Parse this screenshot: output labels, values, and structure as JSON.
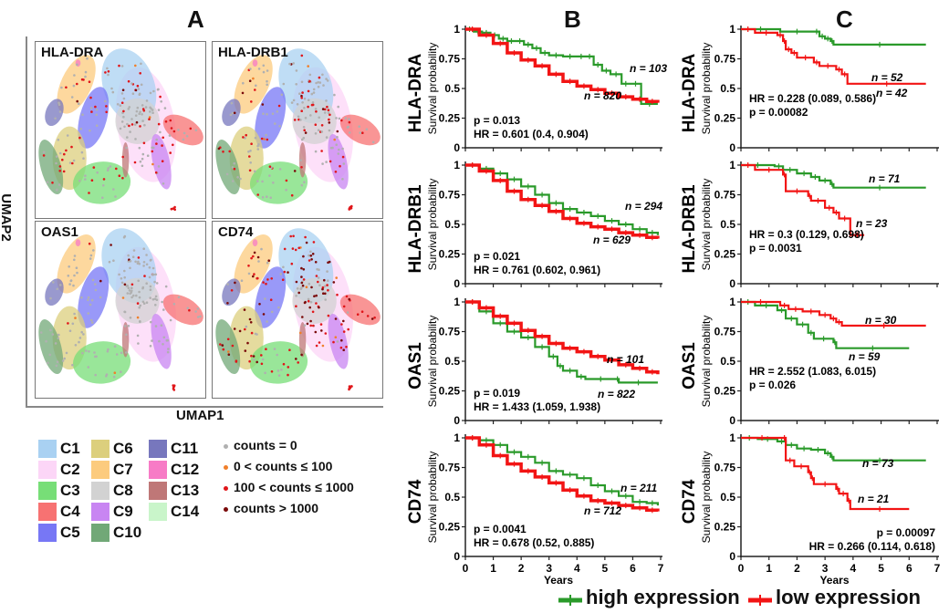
{
  "panels": {
    "A": "A",
    "B": "B",
    "C": "C"
  },
  "umap": {
    "xlabel": "UMAP1",
    "ylabel": "UMAP2",
    "genes": [
      "HLA-DRA",
      "HLA-DRB1",
      "OAS1",
      "CD74"
    ],
    "expression_level": {
      "HLA-DRA": "medium",
      "HLA-DRB1": "medium",
      "OAS1": "low",
      "CD74": "high"
    }
  },
  "clusters": [
    {
      "label": "C1",
      "color": "#a9d1f2"
    },
    {
      "label": "C2",
      "color": "#fcd6f7"
    },
    {
      "label": "C3",
      "color": "#77de77"
    },
    {
      "label": "C4",
      "color": "#f77272"
    },
    {
      "label": "C5",
      "color": "#7777f5"
    },
    {
      "label": "C6",
      "color": "#dccf7d"
    },
    {
      "label": "C7",
      "color": "#fccb7e"
    },
    {
      "label": "C8",
      "color": "#d2d2d2"
    },
    {
      "label": "C9",
      "color": "#c885f2"
    },
    {
      "label": "C10",
      "color": "#71a877"
    },
    {
      "label": "C11",
      "color": "#7777bd"
    },
    {
      "label": "C12",
      "color": "#f77bc6"
    },
    {
      "label": "C13",
      "color": "#bf7777"
    },
    {
      "label": "C14",
      "color": "#c9f5ca"
    }
  ],
  "counts_legend": [
    {
      "label": "counts = 0",
      "color": "#b0b0b0"
    },
    {
      "label": "0 < counts ≤ 100",
      "color": "#f07f2a"
    },
    {
      "label": "100 < counts ≤ 1000",
      "color": "#e0161a"
    },
    {
      "label": "counts > 1000",
      "color": "#7a0a0a"
    }
  ],
  "series_legend": {
    "high": {
      "label": "high expression",
      "color": "#2a9a2a"
    },
    "low": {
      "label": "low expression",
      "color": "#f21414"
    }
  },
  "chart_data": [
    {
      "type": "line",
      "panel": "B",
      "gene": "HLA-DRA",
      "ylabel": "Survival probability",
      "xlabel": "Years",
      "xlim": [
        0,
        7
      ],
      "ylim": [
        0,
        1
      ],
      "yticks": [
        "0",
        "0.25",
        "0.5",
        "0.75",
        "1"
      ],
      "xticks": [
        "0",
        "1",
        "2",
        "3",
        "4",
        "5",
        "6",
        "7"
      ],
      "stats": [
        "p = 0.013",
        "HR = 0.601 (0.4, 0.904)"
      ],
      "stats_pos": "bottom-left",
      "series": [
        {
          "name": "high expression",
          "n": "n = 103",
          "x": [
            0,
            0.3,
            0.6,
            0.9,
            1.2,
            1.5,
            1.8,
            2.1,
            2.4,
            2.7,
            3.0,
            3.5,
            4.0,
            4.3,
            4.6,
            4.9,
            5.2,
            5.6,
            5.9,
            6.3,
            6.9
          ],
          "y": [
            1,
            0.98,
            0.97,
            0.95,
            0.92,
            0.9,
            0.9,
            0.87,
            0.84,
            0.8,
            0.78,
            0.77,
            0.77,
            0.77,
            0.7,
            0.65,
            0.62,
            0.54,
            0.54,
            0.37,
            0.37
          ]
        },
        {
          "name": "low expression",
          "n": "n = 820",
          "x": [
            0,
            0.5,
            1,
            1.5,
            2,
            2.5,
            3,
            3.5,
            4,
            4.5,
            5,
            5.5,
            6,
            6.5,
            6.9
          ],
          "y": [
            1,
            0.95,
            0.88,
            0.8,
            0.74,
            0.69,
            0.62,
            0.56,
            0.52,
            0.49,
            0.46,
            0.43,
            0.41,
            0.39,
            0.38
          ]
        }
      ]
    },
    {
      "type": "line",
      "panel": "B",
      "gene": "HLA-DRB1",
      "ylabel": "Survival probability",
      "xlabel": "Years",
      "xlim": [
        0,
        7
      ],
      "ylim": [
        0,
        1
      ],
      "yticks": [
        "0",
        "0.25",
        "0.5",
        "0.75",
        "1"
      ],
      "xticks": [
        "0",
        "1",
        "2",
        "3",
        "4",
        "5",
        "6",
        "7"
      ],
      "stats": [
        "p = 0.021",
        "HR = 0.761 (0.602, 0.961)"
      ],
      "stats_pos": "bottom-left",
      "series": [
        {
          "name": "high expression",
          "n": "n = 294",
          "x": [
            0,
            0.5,
            1,
            1.5,
            2,
            2.5,
            3,
            3.5,
            4,
            4.5,
            5,
            5.5,
            6,
            6.5,
            6.9
          ],
          "y": [
            1,
            0.97,
            0.93,
            0.88,
            0.82,
            0.75,
            0.68,
            0.63,
            0.6,
            0.57,
            0.53,
            0.5,
            0.46,
            0.43,
            0.41
          ]
        },
        {
          "name": "low expression",
          "n": "n = 629",
          "x": [
            0,
            0.5,
            1,
            1.5,
            2,
            2.5,
            3,
            3.5,
            4,
            4.5,
            5,
            5.5,
            6,
            6.5,
            6.9
          ],
          "y": [
            1,
            0.95,
            0.87,
            0.78,
            0.71,
            0.66,
            0.61,
            0.55,
            0.51,
            0.48,
            0.46,
            0.43,
            0.41,
            0.39,
            0.38
          ]
        }
      ]
    },
    {
      "type": "line",
      "panel": "B",
      "gene": "OAS1",
      "ylabel": "Survival probability",
      "xlabel": "Years",
      "xlim": [
        0,
        7
      ],
      "ylim": [
        0,
        1
      ],
      "yticks": [
        "0",
        "0.25",
        "0.5",
        "0.75",
        "1"
      ],
      "xticks": [
        "0",
        "1",
        "2",
        "3",
        "4",
        "5",
        "6",
        "7"
      ],
      "stats": [
        "p = 0.019",
        "HR = 1.433 (1.059, 1.938)"
      ],
      "stats_pos": "bottom-left",
      "series": [
        {
          "name": "high expression",
          "n": "n = 101",
          "x": [
            0,
            0.5,
            1,
            1.5,
            2,
            2.5,
            3,
            3.3,
            3.5,
            4,
            4.3,
            5.4,
            5.5,
            6.9
          ],
          "y": [
            1,
            0.92,
            0.82,
            0.75,
            0.7,
            0.62,
            0.54,
            0.46,
            0.42,
            0.37,
            0.35,
            0.35,
            0.32,
            0.32
          ]
        },
        {
          "name": "low expression",
          "n": "n = 822",
          "x": [
            0,
            0.5,
            1,
            1.5,
            2,
            2.5,
            3,
            3.5,
            4,
            4.5,
            5,
            5.5,
            6,
            6.5,
            6.9
          ],
          "y": [
            1,
            0.95,
            0.88,
            0.82,
            0.76,
            0.71,
            0.65,
            0.61,
            0.58,
            0.54,
            0.51,
            0.47,
            0.44,
            0.41,
            0.39
          ]
        }
      ]
    },
    {
      "type": "line",
      "panel": "B",
      "gene": "CD74",
      "ylabel": "Survival probability",
      "xlabel": "Years",
      "xlim": [
        0,
        7
      ],
      "ylim": [
        0,
        1
      ],
      "yticks": [
        "0",
        "0.25",
        "0.5",
        "0.75",
        "1"
      ],
      "xticks": [
        "0",
        "1",
        "2",
        "3",
        "4",
        "5",
        "6",
        "7"
      ],
      "stats": [
        "p = 0.0041",
        "HR = 0.678 (0.52, 0.885)"
      ],
      "stats_pos": "bottom-left",
      "series": [
        {
          "name": "high expression",
          "n": "n = 211",
          "x": [
            0,
            0.5,
            1,
            1.5,
            2,
            2.5,
            3,
            3.5,
            4,
            4.5,
            5,
            5.5,
            6,
            6.5,
            6.9
          ],
          "y": [
            1,
            0.98,
            0.94,
            0.88,
            0.84,
            0.79,
            0.72,
            0.69,
            0.66,
            0.6,
            0.55,
            0.51,
            0.46,
            0.45,
            0.43
          ]
        },
        {
          "name": "low expression",
          "n": "n = 712",
          "x": [
            0,
            0.5,
            1,
            1.5,
            2,
            2.5,
            3,
            3.5,
            4,
            4.5,
            5,
            5.5,
            6,
            6.5,
            6.9
          ],
          "y": [
            1,
            0.94,
            0.85,
            0.78,
            0.72,
            0.67,
            0.62,
            0.56,
            0.51,
            0.47,
            0.45,
            0.43,
            0.41,
            0.39,
            0.38
          ]
        }
      ]
    },
    {
      "type": "line",
      "panel": "C",
      "gene": "HLA-DRA",
      "ylabel": "Survival probability",
      "xlabel": "Years",
      "xlim": [
        0,
        7
      ],
      "ylim": [
        0,
        1
      ],
      "yticks": [
        "0",
        "0.25",
        "0.5",
        "0.75",
        "1"
      ],
      "xticks": [
        "0",
        "1",
        "2",
        "3",
        "4",
        "5",
        "6",
        "7"
      ],
      "stats": [
        "HR = 0.228 (0.089, 0.586)",
        "p = 0.00082"
      ],
      "stats_pos": "bottom-left",
      "series": [
        {
          "name": "high expression",
          "n": "n = 52",
          "x": [
            0,
            1.4,
            2.6,
            2.8,
            3.0,
            3.2,
            3.3,
            6.6
          ],
          "y": [
            1,
            0.98,
            0.98,
            0.94,
            0.92,
            0.9,
            0.87,
            0.87
          ]
        },
        {
          "name": "low expression",
          "n": "n = 42",
          "x": [
            0,
            0.5,
            1.3,
            1.5,
            1.6,
            1.8,
            2.0,
            2.6,
            2.8,
            3.4,
            3.6,
            3.8,
            6.6
          ],
          "y": [
            1,
            0.97,
            0.95,
            0.9,
            0.83,
            0.8,
            0.76,
            0.72,
            0.69,
            0.66,
            0.62,
            0.54,
            0.54
          ]
        }
      ]
    },
    {
      "type": "line",
      "panel": "C",
      "gene": "HLA-DRB1",
      "ylabel": "Survival probability",
      "xlabel": "Years",
      "xlim": [
        0,
        7
      ],
      "ylim": [
        0,
        1
      ],
      "yticks": [
        "0",
        "0.25",
        "0.5",
        "0.75",
        "1"
      ],
      "xticks": [
        "0",
        "1",
        "2",
        "3",
        "4",
        "5",
        "6",
        "7"
      ],
      "stats": [
        "HR = 0.3 (0.129, 0.698)",
        "p = 0.0031"
      ],
      "stats_pos": "bottom-left",
      "series": [
        {
          "name": "high expression",
          "n": "n = 71",
          "x": [
            0,
            1.2,
            1.5,
            2.0,
            2.5,
            2.8,
            3.2,
            3.3,
            6.6
          ],
          "y": [
            1,
            0.99,
            0.96,
            0.93,
            0.9,
            0.87,
            0.84,
            0.81,
            0.81
          ]
        },
        {
          "name": "low expression",
          "n": "n = 23",
          "x": [
            0,
            0.5,
            1.5,
            1.6,
            2.4,
            2.5,
            3.0,
            3.3,
            3.5,
            3.9,
            4.4
          ],
          "y": [
            1,
            0.96,
            0.92,
            0.78,
            0.74,
            0.7,
            0.64,
            0.6,
            0.55,
            0.41,
            0.41
          ]
        }
      ]
    },
    {
      "type": "line",
      "panel": "C",
      "gene": "OAS1",
      "ylabel": "Survival probability",
      "xlabel": "Years",
      "xlim": [
        0,
        7
      ],
      "ylim": [
        0,
        1
      ],
      "yticks": [
        "0",
        "0.25",
        "0.5",
        "0.75",
        "1"
      ],
      "xticks": [
        "0",
        "1",
        "2",
        "3",
        "4",
        "5",
        "6",
        "7"
      ],
      "stats": [
        "HR = 2.552 (1.083, 6.015)",
        "p = 0.026"
      ],
      "stats_pos": "bottom-left",
      "series": [
        {
          "name": "high expression",
          "n": "n = 30",
          "x": [
            0,
            0.5,
            1.3,
            1.6,
            2.0,
            2.4,
            2.6,
            3.3,
            3.4,
            6.0
          ],
          "y": [
            1,
            0.97,
            0.93,
            0.86,
            0.81,
            0.74,
            0.69,
            0.66,
            0.61,
            0.61
          ]
        },
        {
          "name": "low expression",
          "n": "n = 59",
          "x": [
            0,
            1.4,
            1.7,
            2.2,
            2.8,
            3.2,
            3.4,
            3.6,
            6.6
          ],
          "y": [
            1,
            0.97,
            0.94,
            0.92,
            0.89,
            0.86,
            0.83,
            0.8,
            0.8
          ]
        }
      ]
    },
    {
      "type": "line",
      "panel": "C",
      "gene": "CD74",
      "ylabel": "Survival probability",
      "xlabel": "Years",
      "xlim": [
        0,
        7
      ],
      "ylim": [
        0,
        1
      ],
      "yticks": [
        "0",
        "0.25",
        "0.5",
        "0.75",
        "1"
      ],
      "xticks": [
        "0",
        "1",
        "2",
        "3",
        "4",
        "5",
        "6",
        "7"
      ],
      "stats": [
        "p = 0.00097",
        "HR = 0.266 (0.114, 0.618)"
      ],
      "stats_pos": "bottom-right",
      "series": [
        {
          "name": "high expression",
          "n": "n = 73",
          "x": [
            0,
            0.6,
            1.3,
            1.6,
            2.0,
            2.5,
            3.0,
            3.2,
            3.3,
            6.6
          ],
          "y": [
            1,
            0.99,
            0.97,
            0.94,
            0.91,
            0.9,
            0.87,
            0.84,
            0.81,
            0.81
          ]
        },
        {
          "name": "low expression",
          "n": "n = 21",
          "x": [
            0,
            1.5,
            1.6,
            1.9,
            2.4,
            2.5,
            2.6,
            3.4,
            3.5,
            3.8,
            3.9,
            6.0
          ],
          "y": [
            1,
            1,
            0.81,
            0.76,
            0.71,
            0.66,
            0.61,
            0.57,
            0.53,
            0.47,
            0.4,
            0.4
          ]
        }
      ]
    }
  ]
}
